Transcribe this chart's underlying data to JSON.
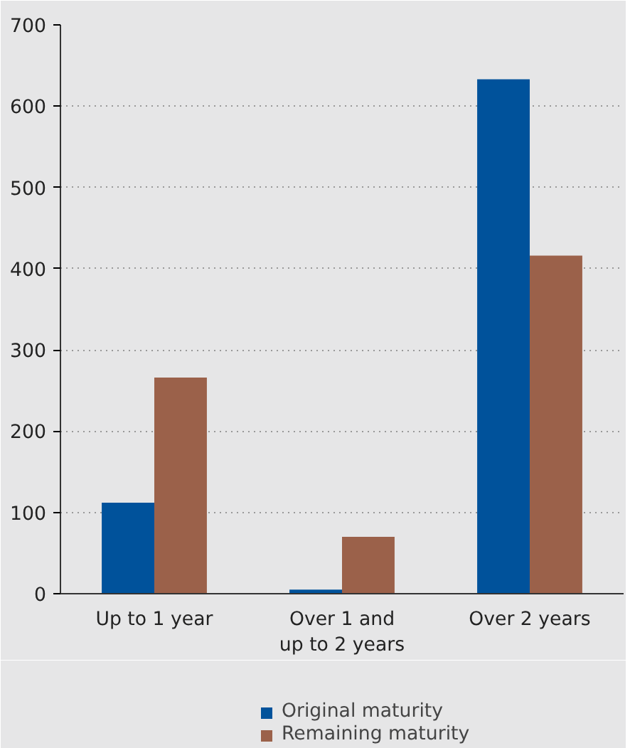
{
  "chart_data": {
    "type": "bar",
    "categories": [
      "Up to 1 year",
      "Over 1 and\nup to 2 years",
      "Over 2 years"
    ],
    "series": [
      {
        "name": "Original maturity",
        "color": "#00529b",
        "values": [
          112,
          5,
          633
        ]
      },
      {
        "name": "Remaining maturity",
        "color": "#9b614a",
        "values": [
          266,
          70,
          416
        ]
      }
    ],
    "ylim": [
      0,
      700
    ],
    "yticks": [
      0,
      100,
      200,
      300,
      400,
      500,
      600,
      700
    ],
    "grid": "y",
    "legend": "bottom"
  }
}
